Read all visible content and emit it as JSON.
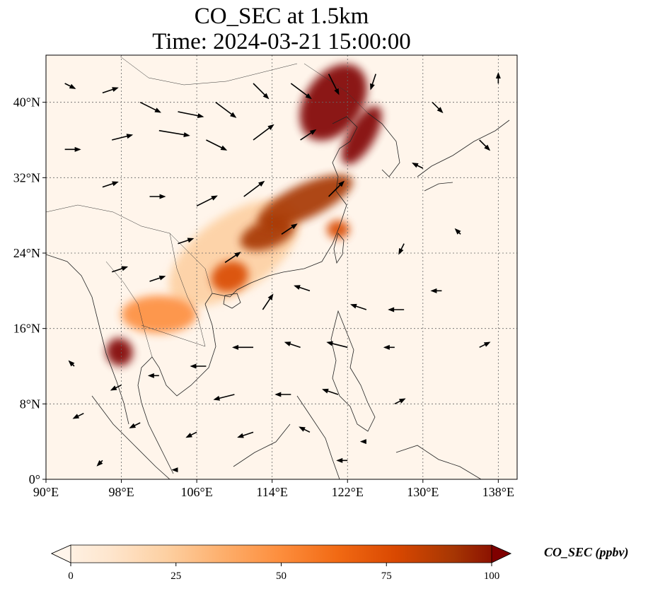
{
  "title": {
    "line1": "CO_SEC at 1.5km",
    "line2": "Time: 2024-03-21 15:00:00"
  },
  "map": {
    "lon_range": [
      90,
      140
    ],
    "lat_range": [
      0,
      45
    ],
    "x_ticks": [
      {
        "value": 90,
        "label": "90°E"
      },
      {
        "value": 98,
        "label": "98°E"
      },
      {
        "value": 106,
        "label": "106°E"
      },
      {
        "value": 114,
        "label": "114°E"
      },
      {
        "value": 122,
        "label": "122°E"
      },
      {
        "value": 130,
        "label": "130°E"
      },
      {
        "value": 138,
        "label": "138°E"
      }
    ],
    "y_ticks": [
      {
        "value": 0,
        "label": "0°"
      },
      {
        "value": 8,
        "label": "8°N"
      },
      {
        "value": 16,
        "label": "16°N"
      },
      {
        "value": 24,
        "label": "24°N"
      },
      {
        "value": 32,
        "label": "32°N"
      },
      {
        "value": 40,
        "label": "40°N"
      }
    ],
    "gridlines": true,
    "plumes": [
      {
        "lon": 120.5,
        "lat": 40.0,
        "rx_deg": 4.5,
        "ry_deg": 3.0,
        "rot": -55,
        "level": 100
      },
      {
        "lon": 123.5,
        "lat": 36.5,
        "rx_deg": 3.5,
        "ry_deg": 1.4,
        "rot": -60,
        "level": 95
      },
      {
        "lon": 117.5,
        "lat": 29.5,
        "rx_deg": 5.5,
        "ry_deg": 1.8,
        "rot": -25,
        "level": 92
      },
      {
        "lon": 113.5,
        "lat": 26.0,
        "rx_deg": 3.0,
        "ry_deg": 1.5,
        "rot": -20,
        "level": 85
      },
      {
        "lon": 121.0,
        "lat": 26.5,
        "rx_deg": 1.2,
        "ry_deg": 1.0,
        "rot": 0,
        "level": 70
      },
      {
        "lon": 109.5,
        "lat": 21.5,
        "rx_deg": 2.0,
        "ry_deg": 1.6,
        "rot": -20,
        "level": 70
      },
      {
        "lon": 102.0,
        "lat": 17.5,
        "rx_deg": 4.0,
        "ry_deg": 2.0,
        "rot": 0,
        "level": 55
      },
      {
        "lon": 97.8,
        "lat": 13.5,
        "rx_deg": 1.4,
        "ry_deg": 1.5,
        "rot": -20,
        "level": 95
      },
      {
        "lon": 110.0,
        "lat": 24.0,
        "rx_deg": 8.0,
        "ry_deg": 4.0,
        "rot": -35,
        "level": 25
      }
    ],
    "wind_vectors": [
      {
        "lon": 92,
        "lat": 42,
        "u": 2,
        "v": -1
      },
      {
        "lon": 96,
        "lat": 41,
        "u": 3,
        "v": 1
      },
      {
        "lon": 100,
        "lat": 40,
        "u": 4,
        "v": -2
      },
      {
        "lon": 104,
        "lat": 39,
        "u": 5,
        "v": -1
      },
      {
        "lon": 108,
        "lat": 40,
        "u": 4,
        "v": -3
      },
      {
        "lon": 112,
        "lat": 42,
        "u": 3,
        "v": -3
      },
      {
        "lon": 116,
        "lat": 42,
        "u": 4,
        "v": -3
      },
      {
        "lon": 120,
        "lat": 43,
        "u": 2,
        "v": -4
      },
      {
        "lon": 125,
        "lat": 43,
        "u": -1,
        "v": -3
      },
      {
        "lon": 92,
        "lat": 35,
        "u": 3,
        "v": 0
      },
      {
        "lon": 97,
        "lat": 36,
        "u": 4,
        "v": 1
      },
      {
        "lon": 102,
        "lat": 37,
        "u": 6,
        "v": -1
      },
      {
        "lon": 107,
        "lat": 36,
        "u": 4,
        "v": -2
      },
      {
        "lon": 112,
        "lat": 36,
        "u": 4,
        "v": 3
      },
      {
        "lon": 117,
        "lat": 36,
        "u": 3,
        "v": 2
      },
      {
        "lon": 96,
        "lat": 31,
        "u": 3,
        "v": 1
      },
      {
        "lon": 101,
        "lat": 30,
        "u": 3,
        "v": 0
      },
      {
        "lon": 106,
        "lat": 29,
        "u": 4,
        "v": 2
      },
      {
        "lon": 111,
        "lat": 30,
        "u": 4,
        "v": 3
      },
      {
        "lon": 115,
        "lat": 26,
        "u": 3,
        "v": 2
      },
      {
        "lon": 120,
        "lat": 30,
        "u": 3,
        "v": 3
      },
      {
        "lon": 104,
        "lat": 25,
        "u": 3,
        "v": 1
      },
      {
        "lon": 109,
        "lat": 23,
        "u": 3,
        "v": 2
      },
      {
        "lon": 97,
        "lat": 22,
        "u": 3,
        "v": 1
      },
      {
        "lon": 101,
        "lat": 21,
        "u": 3,
        "v": 1
      },
      {
        "lon": 113,
        "lat": 18,
        "u": 2,
        "v": 3
      },
      {
        "lon": 118,
        "lat": 20,
        "u": -3,
        "v": 1
      },
      {
        "lon": 124,
        "lat": 18,
        "u": -3,
        "v": 1
      },
      {
        "lon": 128,
        "lat": 18,
        "u": -3,
        "v": 0
      },
      {
        "lon": 132,
        "lat": 20,
        "u": -2,
        "v": 0
      },
      {
        "lon": 128,
        "lat": 25,
        "u": -1,
        "v": -2
      },
      {
        "lon": 134,
        "lat": 26,
        "u": -1,
        "v": 1
      },
      {
        "lon": 130,
        "lat": 33,
        "u": -2,
        "v": 1
      },
      {
        "lon": 136,
        "lat": 36,
        "u": 2,
        "v": -2
      },
      {
        "lon": 131,
        "lat": 40,
        "u": 2,
        "v": -2
      },
      {
        "lon": 138,
        "lat": 42,
        "u": 0,
        "v": 2
      },
      {
        "lon": 112,
        "lat": 14,
        "u": -4,
        "v": 0
      },
      {
        "lon": 117,
        "lat": 14,
        "u": -3,
        "v": 1
      },
      {
        "lon": 122,
        "lat": 14,
        "u": -4,
        "v": 1
      },
      {
        "lon": 127,
        "lat": 14,
        "u": -2,
        "v": 0
      },
      {
        "lon": 136,
        "lat": 14,
        "u": 2,
        "v": 1
      },
      {
        "lon": 107,
        "lat": 12,
        "u": -3,
        "v": 0
      },
      {
        "lon": 102,
        "lat": 11,
        "u": -2,
        "v": 0
      },
      {
        "lon": 98,
        "lat": 10,
        "u": -2,
        "v": -1
      },
      {
        "lon": 93,
        "lat": 12,
        "u": -1,
        "v": 1
      },
      {
        "lon": 110,
        "lat": 9,
        "u": -4,
        "v": -1
      },
      {
        "lon": 116,
        "lat": 9,
        "u": -3,
        "v": 0
      },
      {
        "lon": 121,
        "lat": 9,
        "u": -3,
        "v": 1
      },
      {
        "lon": 127,
        "lat": 8,
        "u": 2,
        "v": 1
      },
      {
        "lon": 94,
        "lat": 7,
        "u": -2,
        "v": -1
      },
      {
        "lon": 100,
        "lat": 6,
        "u": -2,
        "v": -1
      },
      {
        "lon": 106,
        "lat": 5,
        "u": -2,
        "v": -1
      },
      {
        "lon": 112,
        "lat": 5,
        "u": -3,
        "v": -1
      },
      {
        "lon": 118,
        "lat": 5,
        "u": -2,
        "v": 1
      },
      {
        "lon": 124,
        "lat": 4,
        "u": -1,
        "v": 0
      },
      {
        "lon": 96,
        "lat": 2,
        "u": -1,
        "v": -1
      },
      {
        "lon": 104,
        "lat": 1,
        "u": -1,
        "v": 0
      },
      {
        "lon": 122,
        "lat": 2,
        "u": -2,
        "v": 0
      }
    ]
  },
  "colorbar": {
    "min": 0,
    "max": 100,
    "ticks": [
      {
        "value": 0,
        "label": "0"
      },
      {
        "value": 25,
        "label": "25"
      },
      {
        "value": 50,
        "label": "50"
      },
      {
        "value": 75,
        "label": "75"
      },
      {
        "value": 100,
        "label": "100"
      }
    ],
    "label": "CO_SEC (ppbv)",
    "colors": [
      "#fff5eb",
      "#fee6ce",
      "#fdd0a2",
      "#fdae6b",
      "#fd8d3c",
      "#f16913",
      "#d94801",
      "#a63603",
      "#7f0000"
    ]
  }
}
